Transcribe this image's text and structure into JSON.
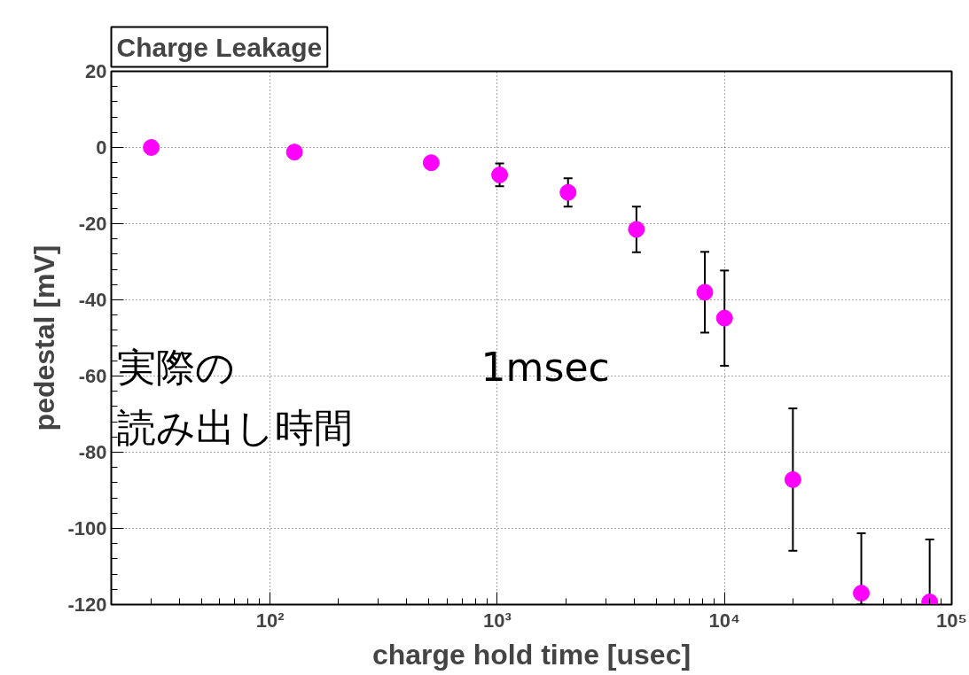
{
  "chart_data": {
    "type": "scatter",
    "title": "Charge Leakage",
    "xlabel": "charge hold time [usec]",
    "ylabel": "pedestal [mV]",
    "log": "x",
    "x": [
      30,
      128,
      512,
      1024,
      2048,
      4096,
      8192,
      10000,
      20000,
      40000,
      80000
    ],
    "values": [
      0,
      -1.2,
      -4,
      -7.2,
      -11.8,
      -21.5,
      -38,
      -44.8,
      -87.2,
      -117,
      -119.3
    ],
    "errors": [
      null,
      null,
      null,
      3,
      3.7,
      6,
      10.6,
      12.5,
      18.7,
      [
        -120,
        -101.3
      ],
      [
        -120,
        -102.9
      ]
    ],
    "color": "#ff00ff",
    "marker": "circle",
    "grid": true,
    "xlim": [
      20,
      100000
    ],
    "ylim": [
      -120,
      20
    ],
    "xticks": [
      {
        "value": 100,
        "label": "10²"
      },
      {
        "value": 1000,
        "label": "10³"
      },
      {
        "value": 10000,
        "label": "10⁴"
      },
      {
        "value": 100000,
        "label": "10⁵"
      }
    ],
    "yticks": [
      -120,
      -100,
      -80,
      -60,
      -40,
      -20,
      0,
      20
    ],
    "annotations": [
      "実際の",
      "読み出し時間",
      "1msec"
    ]
  }
}
